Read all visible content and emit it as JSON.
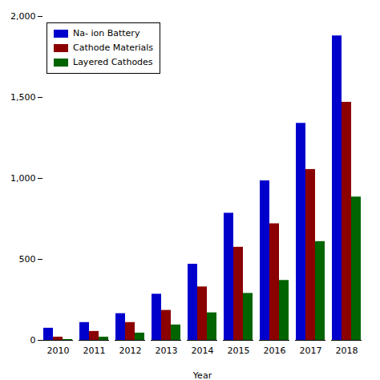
{
  "chart_data": {
    "type": "bar",
    "categories": [
      "2010",
      "2011",
      "2012",
      "2013",
      "2014",
      "2015",
      "2016",
      "2017",
      "2018"
    ],
    "series": [
      {
        "name": "Na- ion Battery",
        "color": "#0000CC",
        "values": [
          75,
          110,
          165,
          285,
          470,
          785,
          985,
          1340,
          1880
        ]
      },
      {
        "name": "Cathode Materials",
        "color": "#8B0000",
        "values": [
          20,
          55,
          110,
          185,
          330,
          575,
          720,
          1055,
          1470
        ]
      },
      {
        "name": "Layered Cathodes",
        "color": "#006400",
        "values": [
          5,
          20,
          45,
          95,
          170,
          290,
          370,
          610,
          885
        ]
      }
    ],
    "xlabel": "Year",
    "ylim": [
      0,
      2000
    ],
    "yticks": [
      0,
      500,
      1000,
      1500,
      2000
    ],
    "legend": "upper left",
    "grid": false
  }
}
